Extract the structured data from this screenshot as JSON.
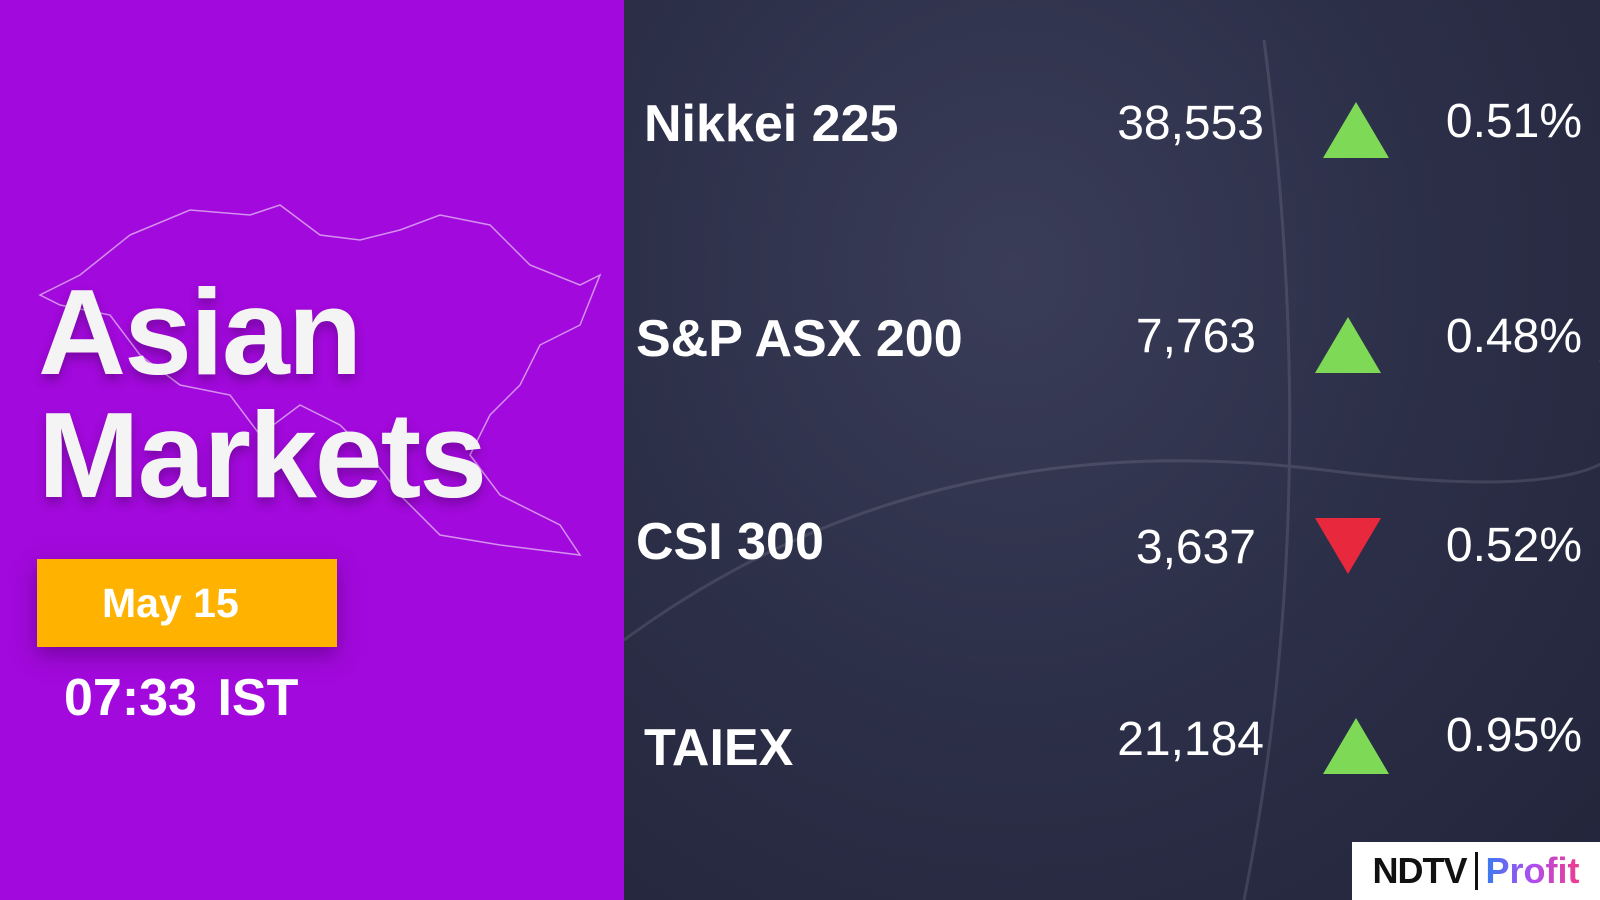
{
  "headline": {
    "line1": "Asian",
    "line2": "Markets"
  },
  "date": "May 15",
  "time": "07:33 IST",
  "colors": {
    "left_bg": "#a209dc",
    "date_bg": "#ffb300",
    "up": "#7ed957",
    "down": "#e8283c",
    "right_bg": "#2a2d45"
  },
  "indices": [
    {
      "name": "Nikkei 225",
      "value": "38,553",
      "direction": "up",
      "change": "0.51%"
    },
    {
      "name": "S&P ASX 200",
      "value": "7,763",
      "direction": "up",
      "change": "0.48%"
    },
    {
      "name": "CSI 300",
      "value": "3,637",
      "direction": "down",
      "change": "0.52%"
    },
    {
      "name": "TAIEX",
      "value": "21,184",
      "direction": "up",
      "change": "0.95%"
    }
  ],
  "logo": {
    "brand": "NDTV",
    "product": "Profit"
  }
}
